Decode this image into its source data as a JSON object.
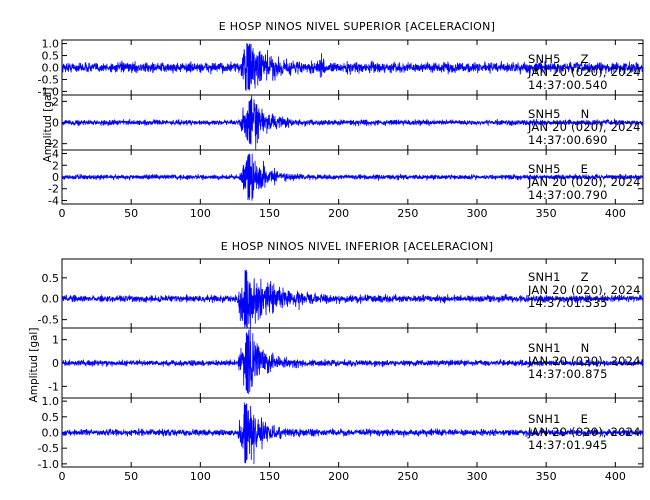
{
  "chart_data": [
    {
      "type": "line",
      "title": "E HOSP NINOS NIVEL SUPERIOR [ACELERACION]",
      "ylabel": "Amplitud [gal]",
      "xlim": [
        0,
        420
      ],
      "x_ticks": [
        0,
        50,
        100,
        150,
        200,
        250,
        300,
        350,
        400
      ],
      "trace_color": "#0000ff",
      "panels": [
        {
          "station": "SNH5",
          "component": "Z",
          "date": "JAN 20 (020), 2024",
          "time": "14:37:00.540",
          "ylim": [
            -1.15,
            1.15
          ],
          "y_ticks": [
            {
              "value": 1.0,
              "label": "1.0"
            },
            {
              "value": 0.5,
              "label": "0.5"
            },
            {
              "value": 0.0,
              "label": "0.0"
            },
            {
              "value": -0.5,
              "label": "-0.5"
            },
            {
              "value": -1.0,
              "label": "-1.0"
            }
          ],
          "signal": {
            "noise": 0.1,
            "onset": 128,
            "peak_time": 135,
            "peak": 1.0,
            "decay": 12,
            "secondary": [
              {
                "time": 188,
                "amp": 0.25
              }
            ]
          }
        },
        {
          "station": "SNH5",
          "component": "N",
          "date": "JAN 20 (020), 2024",
          "time": "14:37:00.690",
          "ylim": [
            -2.6,
            2.6
          ],
          "y_ticks": [
            {
              "value": 2,
              "label": "2"
            },
            {
              "value": 0,
              "label": "0"
            },
            {
              "value": -2,
              "label": "-2"
            }
          ],
          "signal": {
            "noise": 0.12,
            "onset": 128,
            "peak_time": 136,
            "peak": 2.2,
            "decay": 10,
            "secondary": []
          }
        },
        {
          "station": "SNH5",
          "component": "E",
          "date": "JAN 20 (020), 2024",
          "time": "14:37:00.790",
          "ylim": [
            -4.6,
            4.6
          ],
          "y_ticks": [
            {
              "value": 4,
              "label": "4"
            },
            {
              "value": 2,
              "label": "2"
            },
            {
              "value": 0,
              "label": "0"
            },
            {
              "value": -2,
              "label": "-2"
            },
            {
              "value": -4,
              "label": "-4"
            }
          ],
          "signal": {
            "noise": 0.2,
            "onset": 128,
            "peak_time": 135,
            "peak": 4.0,
            "decay": 10,
            "secondary": []
          }
        }
      ]
    },
    {
      "type": "line",
      "title": "E HOSP NINOS NIVEL INFERIOR [ACELERACION]",
      "ylabel": "Amplitud [gal]",
      "xlim": [
        0,
        420
      ],
      "x_ticks": [
        0,
        50,
        100,
        150,
        200,
        250,
        300,
        350,
        400
      ],
      "trace_color": "#0000ff",
      "panels": [
        {
          "station": "SNH1",
          "component": "Z",
          "date": "JAN 20 (020), 2024",
          "time": "14:37:01.535",
          "ylim": [
            -0.7,
            0.95
          ],
          "y_ticks": [
            {
              "value": 0.5,
              "label": "0.5"
            },
            {
              "value": 0.0,
              "label": "0.0"
            },
            {
              "value": -0.5,
              "label": "-0.5"
            }
          ],
          "signal": {
            "noise": 0.04,
            "onset": 126,
            "peak_time": 133,
            "peak": 0.7,
            "decay": 18,
            "secondary": []
          }
        },
        {
          "station": "SNH1",
          "component": "N",
          "date": "JAN 20 (020), 2024",
          "time": "14:37:00.875",
          "ylim": [
            -1.5,
            1.5
          ],
          "y_ticks": [
            {
              "value": 1,
              "label": "1"
            },
            {
              "value": 0,
              "label": "0"
            },
            {
              "value": -1,
              "label": "-1"
            }
          ],
          "signal": {
            "noise": 0.06,
            "onset": 127,
            "peak_time": 134,
            "peak": 1.35,
            "decay": 12,
            "secondary": []
          }
        },
        {
          "station": "SNH1",
          "component": "E",
          "date": "JAN 20 (020), 2024",
          "time": "14:37:01.945",
          "ylim": [
            -1.1,
            1.1
          ],
          "y_ticks": [
            {
              "value": 1.0,
              "label": "1.0"
            },
            {
              "value": 0.5,
              "label": "0.5"
            },
            {
              "value": 0.0,
              "label": "0.0"
            },
            {
              "value": -0.5,
              "label": "-0.5"
            },
            {
              "value": -1.0,
              "label": "-1.0"
            }
          ],
          "signal": {
            "noise": 0.05,
            "onset": 127,
            "peak_time": 133,
            "peak": 1.0,
            "decay": 11,
            "secondary": []
          }
        }
      ]
    }
  ]
}
